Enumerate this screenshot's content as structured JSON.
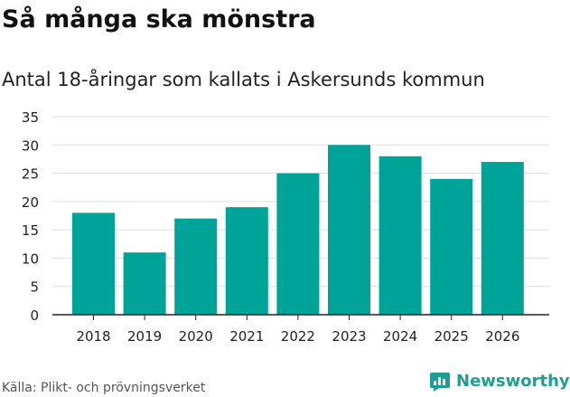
{
  "header": {
    "title": "Så många ska mönstra",
    "subtitle": "Antal 18-åringar som kallats i Askersunds kommun"
  },
  "footer": {
    "source": "Källa: Plikt- och prövningsverket",
    "brand": "Newsworthy"
  },
  "colors": {
    "bar": "#00a398",
    "grid": "#dddddd",
    "axis": "#222222",
    "brand": "#1c9f92"
  },
  "icons": {
    "brand_logo": "chat-bubble-bar-chart-icon"
  },
  "chart_data": {
    "type": "bar",
    "categories": [
      "2018",
      "2019",
      "2020",
      "2021",
      "2022",
      "2023",
      "2024",
      "2025",
      "2026"
    ],
    "values": [
      18,
      11,
      17,
      19,
      25,
      30,
      28,
      24,
      27
    ],
    "ylim": [
      0,
      35
    ],
    "yticks": [
      "0",
      "5",
      "10",
      "15",
      "20",
      "25",
      "30",
      "35"
    ],
    "grid": true,
    "legend": "none"
  }
}
